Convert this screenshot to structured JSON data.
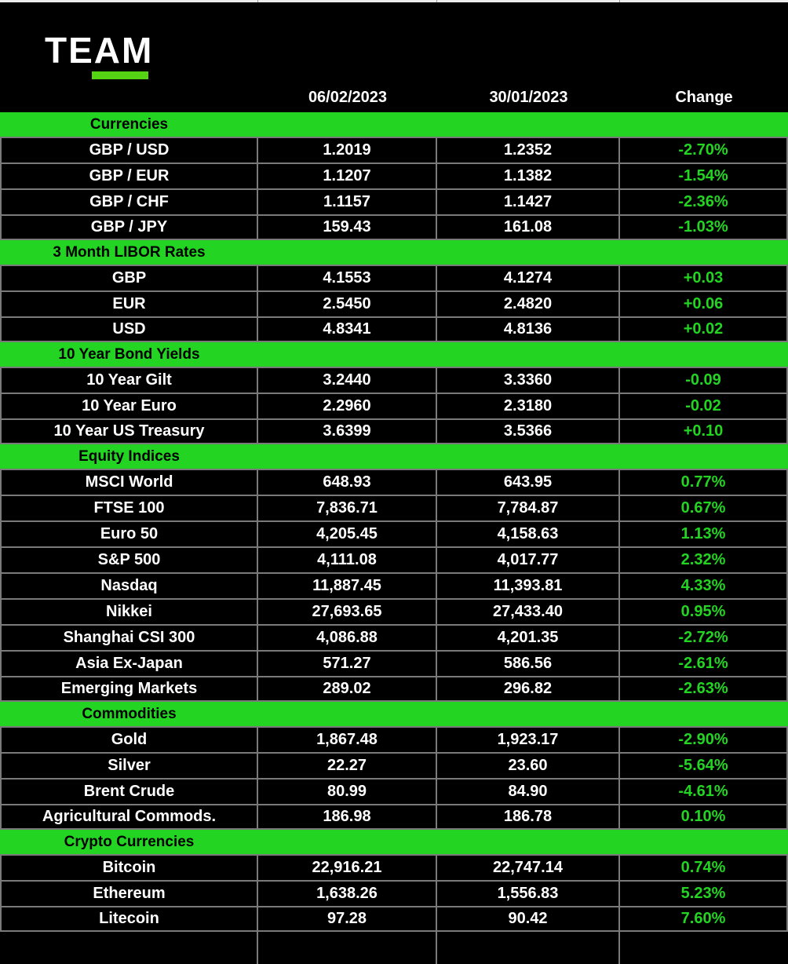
{
  "logo": {
    "text": "TEAM"
  },
  "colors": {
    "table_green": "#23d423",
    "logo_green": "#55d414",
    "gridline_gray": "#7a7a7a",
    "background": "#000000",
    "value_text": "#ffffff"
  },
  "chart_data": {
    "type": "table",
    "columns": [
      "",
      "06/02/2023",
      "30/01/2023",
      "Change"
    ],
    "layout": {
      "grid": "on",
      "section_band_color": "#23d423",
      "positive_negative_color": "#23d423"
    },
    "sections": [
      {
        "title": "Currencies",
        "rows": [
          {
            "label": "GBP / USD",
            "current": "1.2019",
            "previous": "1.2352",
            "change": "-2.70%"
          },
          {
            "label": "GBP / EUR",
            "current": "1.1207",
            "previous": "1.1382",
            "change": "-1.54%"
          },
          {
            "label": "GBP / CHF",
            "current": "1.1157",
            "previous": "1.1427",
            "change": "-2.36%"
          },
          {
            "label": "GBP / JPY",
            "current": "159.43",
            "previous": "161.08",
            "change": "-1.03%"
          }
        ]
      },
      {
        "title": "3 Month LIBOR Rates",
        "rows": [
          {
            "label": "GBP",
            "current": "4.1553",
            "previous": "4.1274",
            "change": "+0.03"
          },
          {
            "label": "EUR",
            "current": "2.5450",
            "previous": "2.4820",
            "change": "+0.06"
          },
          {
            "label": "USD",
            "current": "4.8341",
            "previous": "4.8136",
            "change": "+0.02"
          }
        ]
      },
      {
        "title": "10 Year Bond Yields",
        "rows": [
          {
            "label": "10 Year Gilt",
            "current": "3.2440",
            "previous": "3.3360",
            "change": "-0.09"
          },
          {
            "label": "10 Year Euro",
            "current": "2.2960",
            "previous": "2.3180",
            "change": "-0.02"
          },
          {
            "label": "10 Year US Treasury",
            "current": "3.6399",
            "previous": "3.5366",
            "change": "+0.10"
          }
        ]
      },
      {
        "title": "Equity Indices",
        "rows": [
          {
            "label": "MSCI World",
            "current": "648.93",
            "previous": "643.95",
            "change": "0.77%"
          },
          {
            "label": "FTSE 100",
            "current": "7,836.71",
            "previous": "7,784.87",
            "change": "0.67%"
          },
          {
            "label": "Euro 50",
            "current": "4,205.45",
            "previous": "4,158.63",
            "change": "1.13%"
          },
          {
            "label": "S&P 500",
            "current": "4,111.08",
            "previous": "4,017.77",
            "change": "2.32%"
          },
          {
            "label": "Nasdaq",
            "current": "11,887.45",
            "previous": "11,393.81",
            "change": "4.33%"
          },
          {
            "label": "Nikkei",
            "current": "27,693.65",
            "previous": "27,433.40",
            "change": "0.95%"
          },
          {
            "label": "Shanghai CSI 300",
            "current": "4,086.88",
            "previous": "4,201.35",
            "change": "-2.72%"
          },
          {
            "label": "Asia Ex-Japan",
            "current": "571.27",
            "previous": "586.56",
            "change": "-2.61%"
          },
          {
            "label": "Emerging Markets",
            "current": "289.02",
            "previous": "296.82",
            "change": "-2.63%"
          }
        ]
      },
      {
        "title": "Commodities",
        "rows": [
          {
            "label": "Gold",
            "current": "1,867.48",
            "previous": "1,923.17",
            "change": "-2.90%"
          },
          {
            "label": "Silver",
            "current": "22.27",
            "previous": "23.60",
            "change": "-5.64%"
          },
          {
            "label": "Brent Crude",
            "current": "80.99",
            "previous": "84.90",
            "change": "-4.61%"
          },
          {
            "label": "Agricultural Commods.",
            "current": "186.98",
            "previous": "186.78",
            "change": "0.10%"
          }
        ]
      },
      {
        "title": "Crypto Currencies",
        "rows": [
          {
            "label": "Bitcoin",
            "current": "22,916.21",
            "previous": "22,747.14",
            "change": "0.74%"
          },
          {
            "label": "Ethereum",
            "current": "1,638.26",
            "previous": "1,556.83",
            "change": "5.23%"
          },
          {
            "label": "Litecoin",
            "current": "97.28",
            "previous": "90.42",
            "change": "7.60%"
          }
        ]
      }
    ]
  }
}
